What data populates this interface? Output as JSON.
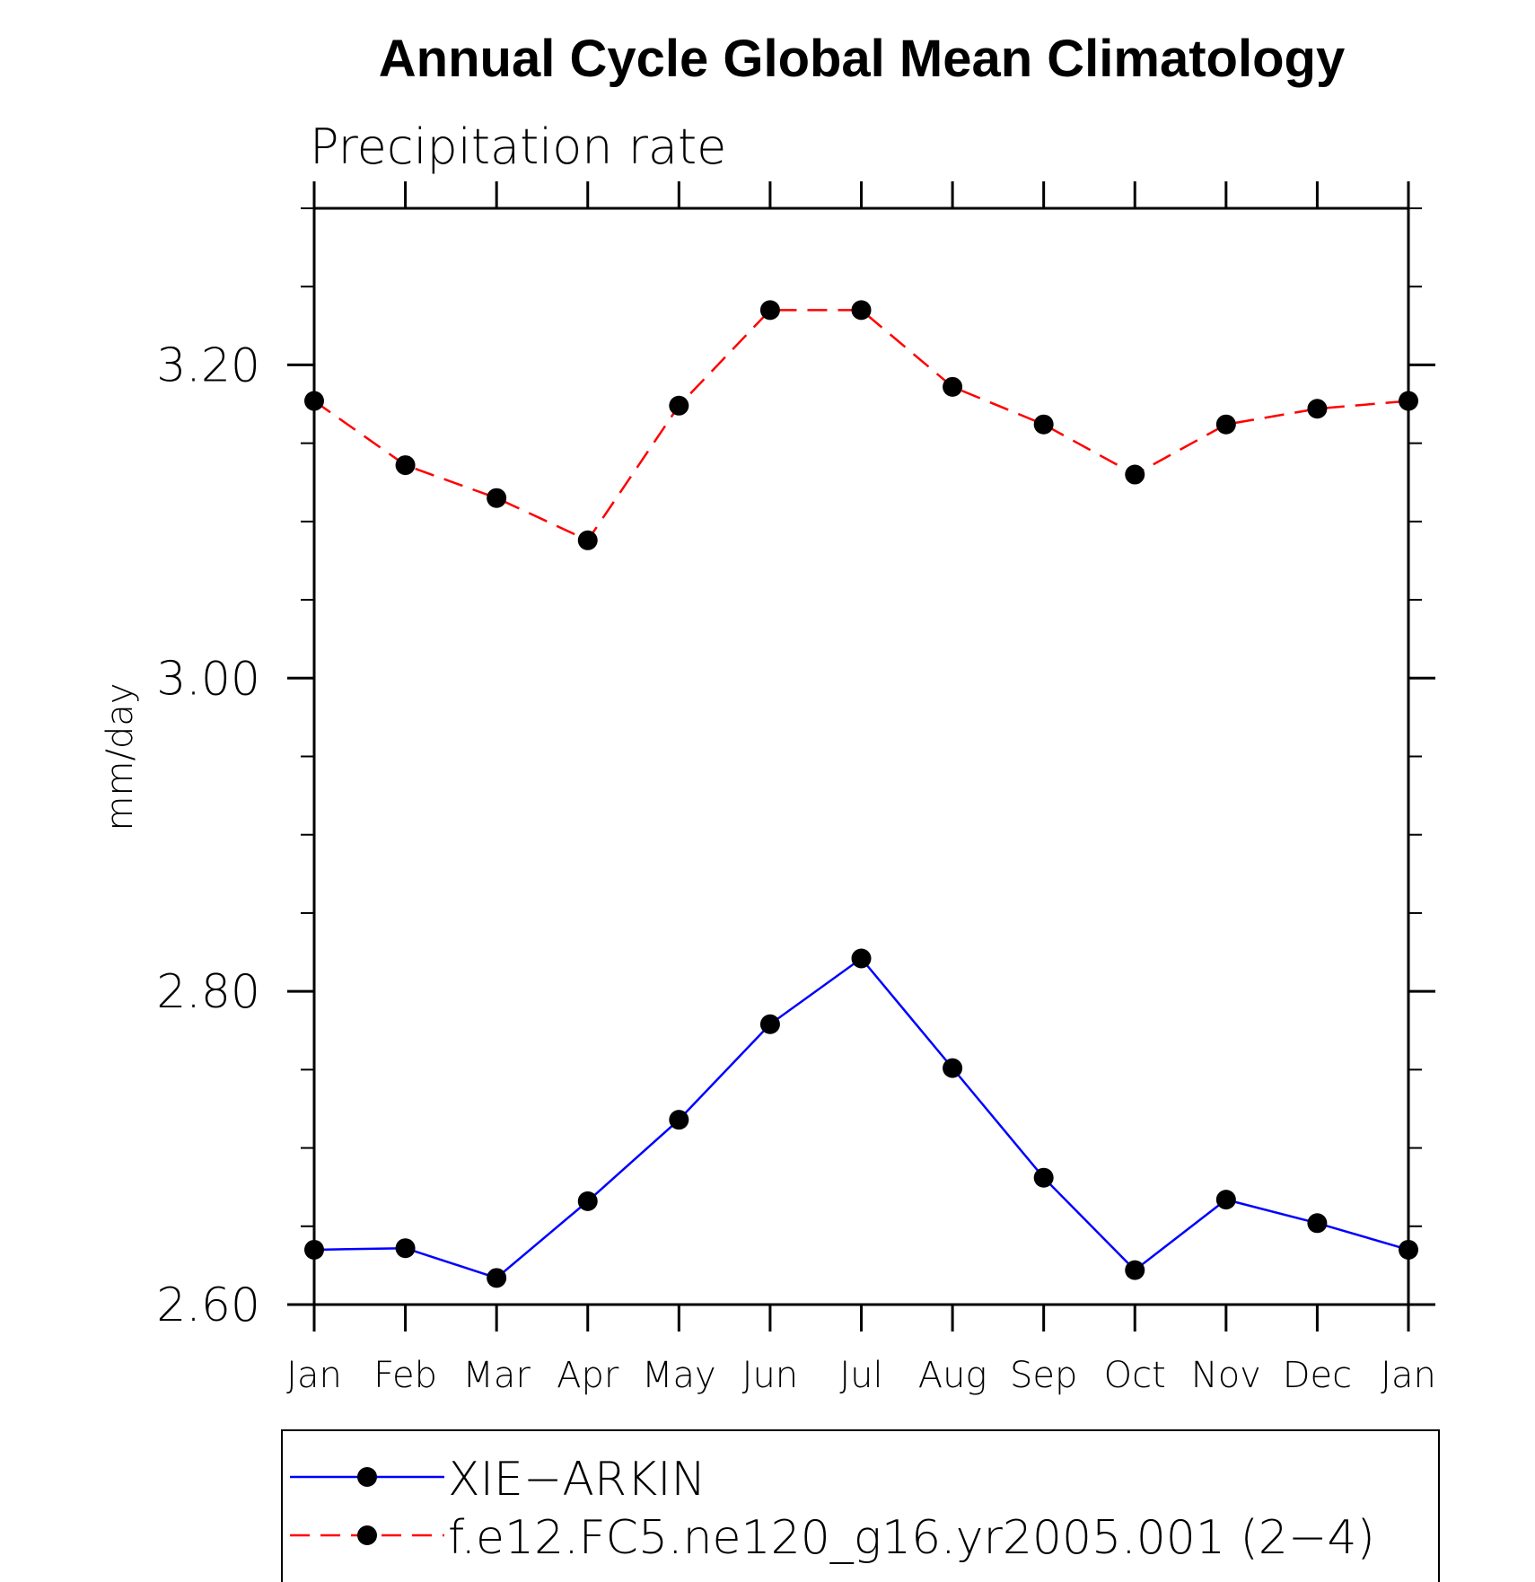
{
  "chart_data": {
    "type": "line",
    "title": "Annual Cycle Global Mean Climatology",
    "subtitle": "Precipitation rate",
    "xlabel": "",
    "ylabel": "mm/day",
    "categories": [
      "Jan",
      "Feb",
      "Mar",
      "Apr",
      "May",
      "Jun",
      "Jul",
      "Aug",
      "Sep",
      "Oct",
      "Nov",
      "Dec",
      "Jan"
    ],
    "ylim": [
      2.6,
      3.3
    ],
    "yticks": [
      2.6,
      2.8,
      3.0,
      3.2
    ],
    "ytick_labels": [
      "2.60",
      "2.80",
      "3.00",
      "3.20"
    ],
    "y_minor_step": 0.05,
    "grid": false,
    "legend_position": "bottom",
    "series": [
      {
        "name": "XIE−ARKIN",
        "color": "#0000ff",
        "line_style": "solid",
        "marker": "filled-circle",
        "values": [
          2.635,
          2.636,
          2.617,
          2.666,
          2.718,
          2.779,
          2.821,
          2.751,
          2.681,
          2.622,
          2.667,
          2.652,
          2.635
        ]
      },
      {
        "name": "f.e12.FC5.ne120_g16.yr2005.001 (2−4)",
        "color": "#ff0000",
        "line_style": "dashed",
        "marker": "filled-circle",
        "values": [
          3.177,
          3.136,
          3.115,
          3.088,
          3.174,
          3.235,
          3.235,
          3.186,
          3.162,
          3.13,
          3.162,
          3.172,
          3.177
        ]
      }
    ]
  }
}
